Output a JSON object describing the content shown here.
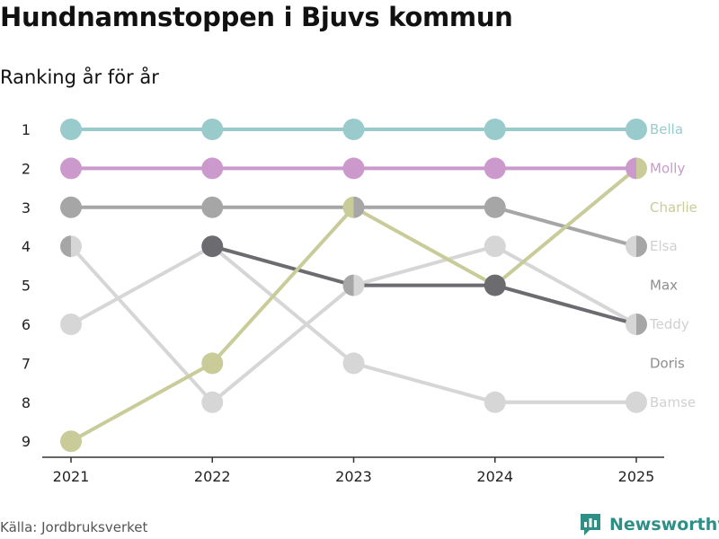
{
  "title": "Hundnamnstoppen i Bjuvs kommun",
  "subtitle": "Ranking år för år",
  "source": "Källa: Jordbruksverket",
  "brand": {
    "name": "Newsworthy",
    "icon": "bar-chart-logo-icon",
    "color": "#2e8f87"
  },
  "chart_data": {
    "type": "line",
    "title": "Hundnamnstoppen i Bjuvs kommun",
    "subtitle": "Ranking år för år",
    "xlabel": "",
    "ylabel": "",
    "x": [
      "2021",
      "2022",
      "2023",
      "2024",
      "2025"
    ],
    "y_ticks": [
      "1",
      "2",
      "3",
      "4",
      "5",
      "6",
      "7",
      "8",
      "9"
    ],
    "ylim": [
      1,
      9
    ],
    "y_reversed": true,
    "series": [
      {
        "name": "Bella",
        "color": "#99cbcc",
        "values": [
          1,
          1,
          1,
          1,
          1
        ]
      },
      {
        "name": "Molly",
        "color": "#cc99cc",
        "values": [
          2,
          2,
          2,
          2,
          2
        ]
      },
      {
        "name": "Charlie",
        "color": "#c9cc99",
        "values": [
          9,
          7,
          3,
          5,
          2
        ]
      },
      {
        "name": "Elsa",
        "color": "#a6a6a6",
        "values": [
          3,
          3,
          3,
          3,
          4
        ]
      },
      {
        "name": "Max",
        "color": "#6b6b70",
        "values": [
          null,
          4,
          5,
          5,
          6
        ]
      },
      {
        "name": "Teddy",
        "color": "#d6d6d6",
        "values": [
          4,
          8,
          5,
          4,
          6
        ]
      },
      {
        "name": "Doris",
        "color": "#d6d6d6",
        "values": [
          6,
          4,
          7,
          8,
          8
        ]
      },
      {
        "name": "Bamse",
        "color": "#d6d6d6",
        "values": [
          null,
          null,
          null,
          8,
          8
        ]
      }
    ],
    "end_labels": [
      {
        "name": "Bella",
        "rank": 1,
        "color": "#99cbcc"
      },
      {
        "name": "Molly",
        "rank": 2,
        "color": "#cc99cc"
      },
      {
        "name": "Charlie",
        "rank": 3,
        "color": "#c9cc99"
      },
      {
        "name": "Elsa",
        "rank": 4,
        "color": "#d0d0d0"
      },
      {
        "name": "Max",
        "rank": 5,
        "color": "#8e8e8e"
      },
      {
        "name": "Teddy",
        "rank": 6,
        "color": "#d0d0d0"
      },
      {
        "name": "Doris",
        "rank": 7,
        "color": "#8e8e8e"
      },
      {
        "name": "Bamse",
        "rank": 8,
        "color": "#d0d0d0"
      }
    ],
    "nodes": [
      {
        "year": "2021",
        "rank": 1,
        "colors": [
          "#99cbcc"
        ]
      },
      {
        "year": "2022",
        "rank": 1,
        "colors": [
          "#99cbcc"
        ]
      },
      {
        "year": "2023",
        "rank": 1,
        "colors": [
          "#99cbcc"
        ]
      },
      {
        "year": "2024",
        "rank": 1,
        "colors": [
          "#99cbcc"
        ]
      },
      {
        "year": "2025",
        "rank": 1,
        "colors": [
          "#99cbcc"
        ]
      },
      {
        "year": "2021",
        "rank": 2,
        "colors": [
          "#cc99cc"
        ]
      },
      {
        "year": "2022",
        "rank": 2,
        "colors": [
          "#cc99cc"
        ]
      },
      {
        "year": "2023",
        "rank": 2,
        "colors": [
          "#cc99cc"
        ]
      },
      {
        "year": "2024",
        "rank": 2,
        "colors": [
          "#cc99cc"
        ]
      },
      {
        "year": "2025",
        "rank": 2,
        "colors": [
          "#cc99cc",
          "#c9cc99"
        ]
      },
      {
        "year": "2021",
        "rank": 3,
        "colors": [
          "#a6a6a6"
        ]
      },
      {
        "year": "2022",
        "rank": 3,
        "colors": [
          "#a6a6a6"
        ]
      },
      {
        "year": "2023",
        "rank": 3,
        "colors": [
          "#c9cc99",
          "#a6a6a6"
        ]
      },
      {
        "year": "2024",
        "rank": 3,
        "colors": [
          "#a6a6a6"
        ]
      },
      {
        "year": "2021",
        "rank": 4,
        "colors": [
          "#a6a6a6",
          "#d6d6d6"
        ]
      },
      {
        "year": "2022",
        "rank": 4,
        "colors": [
          "#6b6b70"
        ]
      },
      {
        "year": "2024",
        "rank": 4,
        "colors": [
          "#d6d6d6"
        ]
      },
      {
        "year": "2025",
        "rank": 4,
        "colors": [
          "#d6d6d6",
          "#a6a6a6"
        ]
      },
      {
        "year": "2023",
        "rank": 5,
        "colors": [
          "#a6a6a6",
          "#d6d6d6"
        ]
      },
      {
        "year": "2024",
        "rank": 5,
        "colors": [
          "#6b6b70"
        ]
      },
      {
        "year": "2021",
        "rank": 6,
        "colors": [
          "#d6d6d6"
        ]
      },
      {
        "year": "2025",
        "rank": 6,
        "colors": [
          "#d6d6d6",
          "#a6a6a6"
        ]
      },
      {
        "year": "2021",
        "rank": 9,
        "colors": [
          "#c9cc99"
        ]
      },
      {
        "year": "2022",
        "rank": 7,
        "colors": [
          "#c9cc99"
        ]
      },
      {
        "year": "2022",
        "rank": 8,
        "colors": [
          "#d6d6d6"
        ]
      },
      {
        "year": "2023",
        "rank": 7,
        "colors": [
          "#d6d6d6"
        ]
      },
      {
        "year": "2024",
        "rank": 8,
        "colors": [
          "#d6d6d6"
        ]
      },
      {
        "year": "2025",
        "rank": 8,
        "colors": [
          "#d6d6d6"
        ]
      }
    ]
  }
}
